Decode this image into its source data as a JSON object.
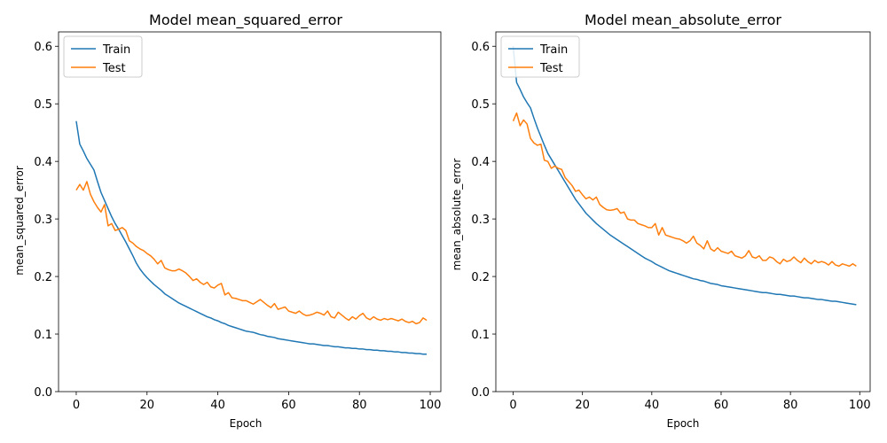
{
  "chart_data": [
    {
      "type": "line",
      "title": "Model mean_squared_error",
      "xlabel": "Epoch",
      "ylabel": "mean_squared_error",
      "xlim": [
        -5,
        103
      ],
      "ylim": [
        0.0,
        0.625
      ],
      "xticks": [
        0,
        20,
        40,
        60,
        80,
        100
      ],
      "yticks": [
        0.0,
        0.1,
        0.2,
        0.3,
        0.4,
        0.5,
        0.6
      ],
      "legend_position": "top-left",
      "series": [
        {
          "name": "Train",
          "color": "#1f77b4",
          "values": [
            0.47,
            0.43,
            0.418,
            0.405,
            0.395,
            0.385,
            0.365,
            0.346,
            0.332,
            0.318,
            0.304,
            0.292,
            0.282,
            0.271,
            0.26,
            0.248,
            0.236,
            0.223,
            0.213,
            0.205,
            0.198,
            0.192,
            0.186,
            0.181,
            0.176,
            0.17,
            0.166,
            0.162,
            0.158,
            0.154,
            0.151,
            0.148,
            0.145,
            0.142,
            0.139,
            0.136,
            0.133,
            0.13,
            0.128,
            0.125,
            0.123,
            0.12,
            0.118,
            0.115,
            0.113,
            0.111,
            0.109,
            0.107,
            0.105,
            0.104,
            0.103,
            0.101,
            0.099,
            0.098,
            0.096,
            0.095,
            0.094,
            0.092,
            0.091,
            0.09,
            0.089,
            0.088,
            0.087,
            0.086,
            0.085,
            0.084,
            0.083,
            0.083,
            0.082,
            0.081,
            0.08,
            0.08,
            0.079,
            0.078,
            0.078,
            0.077,
            0.076,
            0.076,
            0.075,
            0.075,
            0.074,
            0.074,
            0.073,
            0.073,
            0.072,
            0.072,
            0.071,
            0.071,
            0.07,
            0.07,
            0.069,
            0.069,
            0.068,
            0.068,
            0.067,
            0.067,
            0.066,
            0.066,
            0.065,
            0.065
          ]
        },
        {
          "name": "Test",
          "color": "#ff7f0e",
          "values": [
            0.35,
            0.36,
            0.35,
            0.365,
            0.343,
            0.33,
            0.32,
            0.312,
            0.325,
            0.288,
            0.292,
            0.28,
            0.282,
            0.285,
            0.28,
            0.262,
            0.258,
            0.252,
            0.248,
            0.245,
            0.24,
            0.236,
            0.23,
            0.222,
            0.228,
            0.215,
            0.212,
            0.21,
            0.21,
            0.213,
            0.21,
            0.206,
            0.2,
            0.193,
            0.196,
            0.19,
            0.186,
            0.19,
            0.182,
            0.18,
            0.185,
            0.188,
            0.168,
            0.172,
            0.163,
            0.162,
            0.16,
            0.158,
            0.158,
            0.155,
            0.152,
            0.156,
            0.16,
            0.155,
            0.15,
            0.146,
            0.153,
            0.143,
            0.145,
            0.147,
            0.14,
            0.138,
            0.136,
            0.14,
            0.135,
            0.132,
            0.133,
            0.135,
            0.138,
            0.136,
            0.133,
            0.14,
            0.13,
            0.128,
            0.138,
            0.133,
            0.128,
            0.124,
            0.13,
            0.126,
            0.132,
            0.136,
            0.128,
            0.125,
            0.13,
            0.126,
            0.124,
            0.127,
            0.125,
            0.127,
            0.125,
            0.123,
            0.126,
            0.122,
            0.12,
            0.122,
            0.118,
            0.12,
            0.128,
            0.124
          ]
        }
      ]
    },
    {
      "type": "line",
      "title": "Model mean_absolute_error",
      "xlabel": "Epoch",
      "ylabel": "mean_absolute_error",
      "xlim": [
        -5,
        103
      ],
      "ylim": [
        0.0,
        0.625
      ],
      "xticks": [
        0,
        20,
        40,
        60,
        80,
        100
      ],
      "yticks": [
        0.0,
        0.1,
        0.2,
        0.3,
        0.4,
        0.5,
        0.6
      ],
      "legend_position": "top-left",
      "series": [
        {
          "name": "Train",
          "color": "#1f77b4",
          "values": [
            0.6,
            0.537,
            0.525,
            0.512,
            0.502,
            0.493,
            0.475,
            0.458,
            0.443,
            0.428,
            0.414,
            0.404,
            0.394,
            0.384,
            0.374,
            0.364,
            0.354,
            0.344,
            0.334,
            0.326,
            0.318,
            0.31,
            0.304,
            0.298,
            0.292,
            0.287,
            0.282,
            0.277,
            0.272,
            0.268,
            0.264,
            0.26,
            0.256,
            0.252,
            0.248,
            0.244,
            0.24,
            0.236,
            0.232,
            0.229,
            0.226,
            0.222,
            0.219,
            0.216,
            0.213,
            0.21,
            0.208,
            0.206,
            0.204,
            0.202,
            0.2,
            0.198,
            0.196,
            0.195,
            0.193,
            0.192,
            0.19,
            0.188,
            0.187,
            0.186,
            0.184,
            0.183,
            0.182,
            0.181,
            0.18,
            0.179,
            0.178,
            0.177,
            0.176,
            0.175,
            0.174,
            0.173,
            0.172,
            0.172,
            0.171,
            0.17,
            0.169,
            0.169,
            0.168,
            0.167,
            0.166,
            0.166,
            0.165,
            0.164,
            0.163,
            0.163,
            0.162,
            0.161,
            0.16,
            0.16,
            0.159,
            0.158,
            0.157,
            0.157,
            0.156,
            0.155,
            0.154,
            0.153,
            0.152,
            0.151
          ]
        },
        {
          "name": "Test",
          "color": "#ff7f0e",
          "values": [
            0.47,
            0.484,
            0.462,
            0.472,
            0.465,
            0.44,
            0.432,
            0.428,
            0.43,
            0.402,
            0.4,
            0.388,
            0.392,
            0.388,
            0.386,
            0.372,
            0.365,
            0.358,
            0.348,
            0.35,
            0.342,
            0.335,
            0.338,
            0.333,
            0.338,
            0.325,
            0.32,
            0.316,
            0.315,
            0.316,
            0.318,
            0.31,
            0.312,
            0.3,
            0.298,
            0.298,
            0.292,
            0.29,
            0.288,
            0.285,
            0.285,
            0.292,
            0.272,
            0.285,
            0.272,
            0.27,
            0.268,
            0.266,
            0.265,
            0.262,
            0.258,
            0.262,
            0.27,
            0.258,
            0.254,
            0.248,
            0.262,
            0.248,
            0.244,
            0.25,
            0.244,
            0.242,
            0.24,
            0.244,
            0.236,
            0.234,
            0.232,
            0.236,
            0.245,
            0.234,
            0.232,
            0.236,
            0.228,
            0.228,
            0.234,
            0.232,
            0.226,
            0.222,
            0.23,
            0.226,
            0.228,
            0.234,
            0.228,
            0.224,
            0.232,
            0.226,
            0.222,
            0.228,
            0.224,
            0.226,
            0.224,
            0.22,
            0.226,
            0.22,
            0.218,
            0.222,
            0.22,
            0.218,
            0.222,
            0.218
          ]
        }
      ]
    }
  ]
}
